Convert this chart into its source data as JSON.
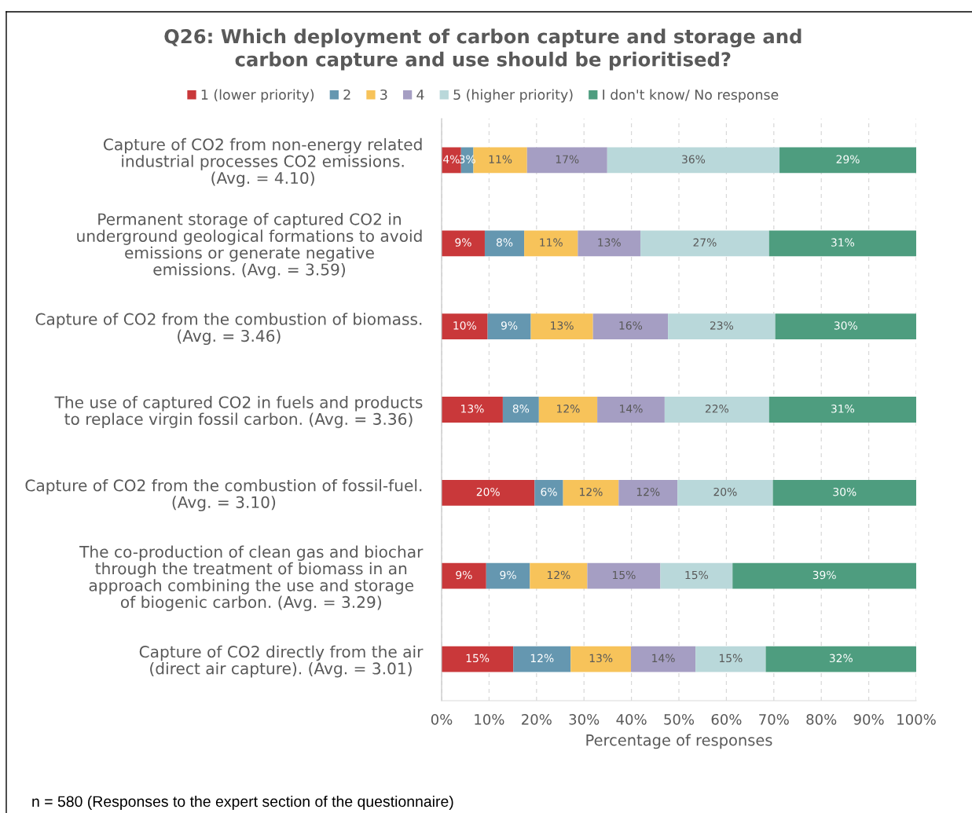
{
  "chart_data": {
    "type": "bar",
    "orientation": "horizontal",
    "stacked": true,
    "title": "Q26: Which deployment of carbon capture and storage and\ncarbon capture and use should be prioritised?",
    "xlabel": "Percentage of responses",
    "categories": [
      "Capture of CO2 from non-energy related\nindustrial processes CO2 emissions.\n(Avg. = 4.10)",
      "Permanent storage of captured CO2 in\nunderground geological formations to avoid\nemissions or generate negative\nemissions. (Avg. = 3.59)",
      "Capture of CO2 from the combustion of biomass.\n(Avg. = 3.46)",
      "The use of captured CO2 in fuels and products\nto replace virgin fossil carbon. (Avg. = 3.36)",
      "Capture of CO2 from the combustion of fossil-fuel.\n(Avg. = 3.10)",
      "The co-production of clean gas and biochar\nthrough the treatment of biomass in an\napproach combining the use and storage\nof biogenic carbon. (Avg. = 3.29)",
      "Capture of CO2 directly from the air\n(direct air capture). (Avg. = 3.01)"
    ],
    "series": [
      {
        "name": "1 (lower priority)",
        "color": "#c9383a",
        "values": [
          4.1,
          9.1,
          9.7,
          12.9,
          19.6,
          9.4,
          15.1
        ],
        "value_labels": [
          "4%",
          "9%",
          "10%",
          "13%",
          "20%",
          "9%",
          "15%"
        ]
      },
      {
        "name": "2",
        "color": "#6597b0",
        "values": [
          2.6,
          8.3,
          9.1,
          7.6,
          6.0,
          9.2,
          12.1
        ],
        "value_labels": [
          "3%",
          "8%",
          "9%",
          "8%",
          "6%",
          "9%",
          "12%"
        ]
      },
      {
        "name": "3",
        "color": "#f7c35a",
        "values": [
          11.3,
          11.3,
          13.1,
          12.3,
          11.7,
          12.1,
          12.7
        ],
        "value_labels": [
          "11%",
          "11%",
          "13%",
          "12%",
          "12%",
          "12%",
          "13%"
        ]
      },
      {
        "name": "4",
        "color": "#a59ec3",
        "values": [
          16.9,
          13.2,
          15.8,
          14.2,
          12.4,
          15.4,
          13.6
        ],
        "value_labels": [
          "17%",
          "13%",
          "16%",
          "14%",
          "12%",
          "15%",
          "14%"
        ]
      },
      {
        "name": "5 (higher priority)",
        "color": "#b9d8da",
        "values": [
          36.3,
          27.1,
          22.6,
          22.0,
          20.1,
          15.2,
          14.8
        ],
        "value_labels": [
          "36%",
          "27%",
          "23%",
          "22%",
          "20%",
          "15%",
          "15%"
        ]
      },
      {
        "name": "I don't know/ No response",
        "color": "#4e9d7f",
        "values": [
          28.8,
          31.0,
          29.7,
          31.0,
          30.2,
          38.7,
          31.7
        ],
        "value_labels": [
          "29%",
          "31%",
          "30%",
          "31%",
          "30%",
          "39%",
          "32%"
        ]
      }
    ],
    "xlim": [
      0,
      100
    ],
    "xticks": [
      {
        "value": 0,
        "label": "0%"
      },
      {
        "value": 10,
        "label": "10%"
      },
      {
        "value": 20,
        "label": "20%"
      },
      {
        "value": 30,
        "label": "30%"
      },
      {
        "value": 40,
        "label": "40%"
      },
      {
        "value": 50,
        "label": "50%"
      },
      {
        "value": 60,
        "label": "60%"
      },
      {
        "value": 70,
        "label": "70%"
      },
      {
        "value": 80,
        "label": "80%"
      },
      {
        "value": 90,
        "label": "90%"
      },
      {
        "value": 100,
        "label": "100%"
      }
    ],
    "grid": "x",
    "legend": "top",
    "annotations": [
      "n = 580 (Responses to the expert section of the questionnaire)"
    ]
  }
}
